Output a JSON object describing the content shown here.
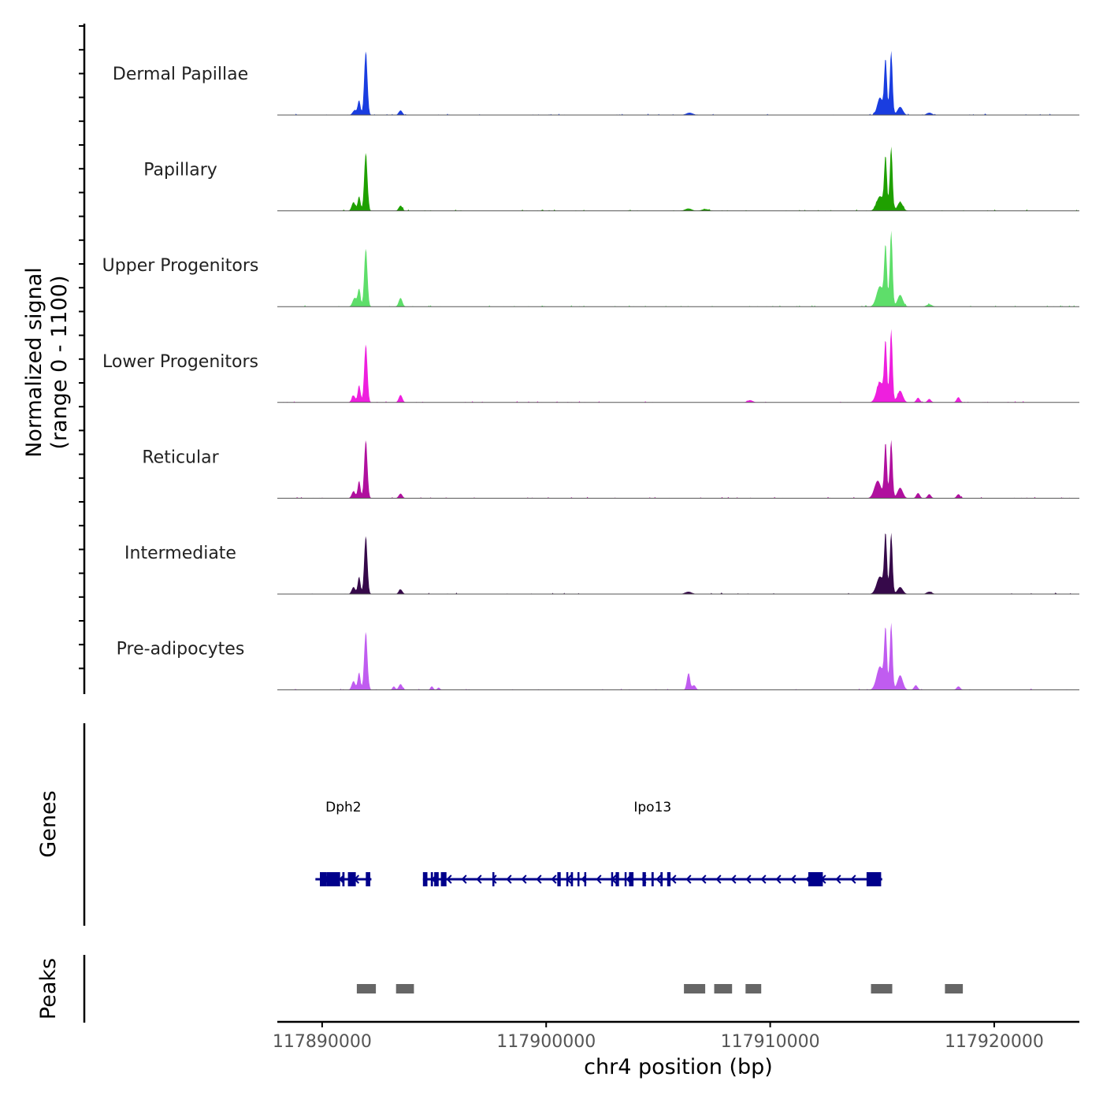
{
  "chart_data": {
    "type": "area",
    "title": "",
    "ylabel_line1": "Normalized signal",
    "ylabel_line2": "(range 0 - 1100)",
    "y_range": [
      0,
      1100
    ],
    "xlabel": "chr4 position (bp)",
    "chromosome": "chr4",
    "x_range": [
      117888000,
      117923800
    ],
    "x_ticks": [
      117890000,
      117900000,
      117910000,
      117920000
    ],
    "x_tick_labels": [
      "117890000",
      "117900000",
      "117910000",
      "117920000"
    ],
    "tracks": [
      {
        "name": "Dermal Papillae",
        "color": "#1a3de0",
        "peaks": [
          [
            117891950,
            1100,
            70
          ],
          [
            117891650,
            250,
            60
          ],
          [
            117891450,
            80,
            90
          ],
          [
            117893500,
            80,
            80
          ],
          [
            117906400,
            40,
            150
          ],
          [
            117915150,
            950,
            60
          ],
          [
            117915400,
            1100,
            60
          ],
          [
            117914900,
            300,
            120
          ],
          [
            117915800,
            140,
            120
          ],
          [
            117917100,
            40,
            120
          ]
        ]
      },
      {
        "name": "Papillary",
        "color": "#1fa000",
        "peaks": [
          [
            117891950,
            1000,
            70
          ],
          [
            117891650,
            250,
            60
          ],
          [
            117891400,
            150,
            80
          ],
          [
            117893500,
            90,
            80
          ],
          [
            117906350,
            40,
            150
          ],
          [
            117907100,
            30,
            150
          ],
          [
            117915150,
            900,
            60
          ],
          [
            117915400,
            1100,
            60
          ],
          [
            117914900,
            250,
            150
          ],
          [
            117915800,
            150,
            120
          ]
        ]
      },
      {
        "name": "Upper Progenitors",
        "color": "#5ede6a",
        "peaks": [
          [
            117891950,
            1000,
            70
          ],
          [
            117891650,
            300,
            60
          ],
          [
            117891450,
            150,
            90
          ],
          [
            117893500,
            150,
            80
          ],
          [
            117915150,
            1000,
            60
          ],
          [
            117915400,
            1300,
            60
          ],
          [
            117914900,
            350,
            150
          ],
          [
            117915800,
            200,
            120
          ],
          [
            117917100,
            40,
            120
          ]
        ]
      },
      {
        "name": "Lower Progenitors",
        "color": "#ee1fde",
        "peaks": [
          [
            117891950,
            1000,
            70
          ],
          [
            117891650,
            300,
            60
          ],
          [
            117891400,
            120,
            80
          ],
          [
            117893500,
            130,
            80
          ],
          [
            117909100,
            40,
            120
          ],
          [
            117915150,
            1000,
            60
          ],
          [
            117915400,
            1250,
            60
          ],
          [
            117914900,
            350,
            150
          ],
          [
            117915800,
            200,
            120
          ],
          [
            117916600,
            80,
            80
          ],
          [
            117917100,
            60,
            80
          ],
          [
            117918400,
            90,
            80
          ]
        ]
      },
      {
        "name": "Reticular",
        "color": "#b0109e",
        "peaks": [
          [
            117891950,
            1000,
            70
          ],
          [
            117891650,
            300,
            60
          ],
          [
            117891400,
            120,
            80
          ],
          [
            117893500,
            80,
            80
          ],
          [
            117915150,
            950,
            60
          ],
          [
            117915400,
            1000,
            60
          ],
          [
            117914800,
            300,
            150
          ],
          [
            117915800,
            180,
            120
          ],
          [
            117916600,
            90,
            80
          ],
          [
            117917100,
            70,
            80
          ],
          [
            117918400,
            70,
            80
          ]
        ]
      },
      {
        "name": "Intermediate",
        "color": "#36094a",
        "peaks": [
          [
            117891950,
            1000,
            70
          ],
          [
            117891650,
            300,
            60
          ],
          [
            117891400,
            120,
            80
          ],
          [
            117893500,
            80,
            80
          ],
          [
            117906350,
            40,
            150
          ],
          [
            117915150,
            1000,
            60
          ],
          [
            117915400,
            1050,
            60
          ],
          [
            117914900,
            300,
            150
          ],
          [
            117915800,
            120,
            120
          ],
          [
            117917100,
            40,
            120
          ]
        ]
      },
      {
        "name": "Pre-adipocytes",
        "color": "#c05cf0",
        "peaks": [
          [
            117891950,
            1000,
            70
          ],
          [
            117891650,
            300,
            60
          ],
          [
            117891400,
            150,
            80
          ],
          [
            117893500,
            100,
            80
          ],
          [
            117893200,
            60,
            60
          ],
          [
            117894900,
            60,
            60
          ],
          [
            117895200,
            40,
            60
          ],
          [
            117906350,
            280,
            70
          ],
          [
            117906600,
            80,
            80
          ],
          [
            117915150,
            1000,
            60
          ],
          [
            117915400,
            1150,
            60
          ],
          [
            117914900,
            400,
            150
          ],
          [
            117915800,
            250,
            120
          ],
          [
            117916500,
            80,
            80
          ],
          [
            117918400,
            60,
            80
          ]
        ]
      }
    ],
    "genes_track_label": "Genes",
    "genes": [
      {
        "name": "Dph2",
        "start": 117889700,
        "end": 117892200,
        "strand": "-",
        "color": "#00008b",
        "exons": [
          [
            117889900,
            117890200
          ],
          [
            117890200,
            117890800
          ],
          [
            117890900,
            117891000
          ],
          [
            117891150,
            117891500
          ],
          [
            117891950,
            117892150
          ]
        ]
      },
      {
        "name": "Ipo13",
        "start": 117894500,
        "end": 117915000,
        "strand": "-",
        "color": "#00008b",
        "exons": [
          [
            117894500,
            117894700
          ],
          [
            117894850,
            117894950
          ],
          [
            117895000,
            117895200
          ],
          [
            117895300,
            117895550
          ],
          [
            117897600,
            117897650
          ],
          [
            117900500,
            117900650
          ],
          [
            117900900,
            117900950
          ],
          [
            117901100,
            117901200
          ],
          [
            117901400,
            117901450
          ],
          [
            117901700,
            117901750
          ],
          [
            117902900,
            117902950
          ],
          [
            117903100,
            117903250
          ],
          [
            117903500,
            117903550
          ],
          [
            117903700,
            117903900
          ],
          [
            117904300,
            117904450
          ],
          [
            117904700,
            117904800
          ],
          [
            117905100,
            117905200
          ],
          [
            117905400,
            117905550
          ],
          [
            117911700,
            117912350
          ],
          [
            117914300,
            117914950
          ]
        ]
      }
    ],
    "peaks_track_label": "Peaks",
    "peak_regions": [
      [
        117891550,
        117892400
      ],
      [
        117893300,
        117894100
      ],
      [
        117906150,
        117907100
      ],
      [
        117907500,
        117908300
      ],
      [
        117908900,
        117909600
      ],
      [
        117914500,
        117915450
      ],
      [
        117917800,
        117918600
      ]
    ],
    "peak_color": "#666666"
  }
}
